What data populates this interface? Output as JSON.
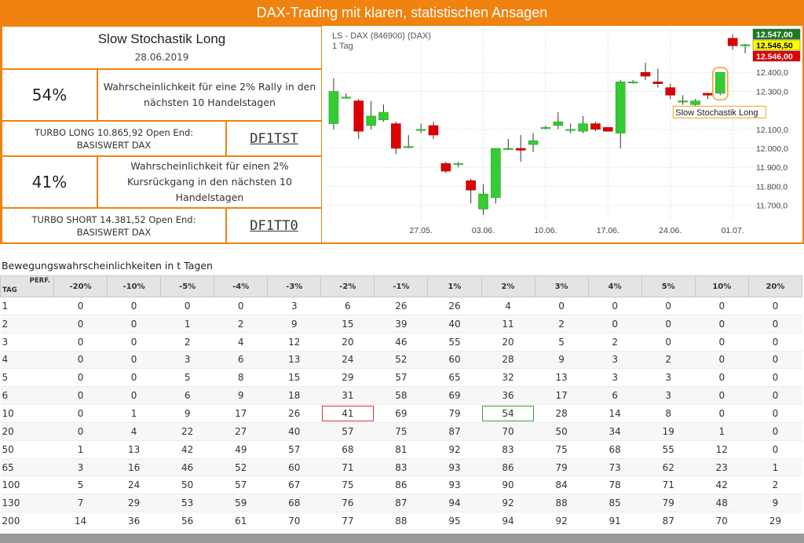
{
  "banner": {
    "title": "DAX-Trading mit klaren, statistischen Ansagen"
  },
  "signal": {
    "title": "Slow Stochastik Long",
    "date": "28.06.2019",
    "rally": {
      "pct": "54%",
      "text": "Wahrscheinlichkeit für eine 2% Rally in den nächsten 10 Handelstagen"
    },
    "long": {
      "turbo": "TURBO LONG 10.865,92 Open End: BASISWERT DAX",
      "code": "DF1TST"
    },
    "fall": {
      "pct": "41%",
      "text": "Wahrscheinlichkeit für einen 2% Kursrückgang in den nächsten 10 Handelstagen"
    },
    "short": {
      "turbo": "TURBO SHORT 14.381,52 Open End: BASISWERT DAX",
      "code": "DF1TT0"
    }
  },
  "chart_data": {
    "type": "candlestick",
    "title": "LS - DAX (846900) (DAX)",
    "subtitle": "1 Tag",
    "annotation": "Slow Stochastik Long",
    "ylim": [
      11620,
      12620
    ],
    "y_ticks": [
      11700,
      11800,
      11900,
      12000,
      12100,
      12300,
      12400
    ],
    "y_tick_labels": [
      "11.700,0",
      "11.800,0",
      "11.900,0",
      "12.000,0",
      "12.100,0",
      "12.300,0",
      "12.400,0"
    ],
    "x_ticks": [
      {
        "label": "27.05.",
        "index": 7
      },
      {
        "label": "03.06.",
        "index": 12
      },
      {
        "label": "10.06.",
        "index": 17
      },
      {
        "label": "17.06.",
        "index": 22
      },
      {
        "label": "24.06.",
        "index": 27
      },
      {
        "label": "01.07.",
        "index": 32
      }
    ],
    "price_labels": [
      {
        "value": "12.547,00",
        "color": "#1f7a1f",
        "text_color": "#ffffff"
      },
      {
        "value": "12.546,50",
        "color": "#ffff00",
        "text_color": "#000000"
      },
      {
        "value": "12.546,00",
        "color": "#e00000",
        "text_color": "#ffffff"
      }
    ],
    "colors": {
      "up": "#33cc33",
      "down": "#dd0000"
    },
    "candles": [
      {
        "o": 12130,
        "h": 12370,
        "l": 12100,
        "c": 12300
      },
      {
        "o": 12270,
        "h": 12290,
        "l": 12260,
        "c": 12270
      },
      {
        "o": 12250,
        "h": 12260,
        "l": 12050,
        "c": 12090
      },
      {
        "o": 12120,
        "h": 12250,
        "l": 12100,
        "c": 12170
      },
      {
        "o": 12150,
        "h": 12230,
        "l": 12140,
        "c": 12190
      },
      {
        "o": 12130,
        "h": 12140,
        "l": 11970,
        "c": 12000
      },
      {
        "o": 12010,
        "h": 12070,
        "l": 12000,
        "c": 12010
      },
      {
        "o": 12100,
        "h": 12130,
        "l": 12080,
        "c": 12100
      },
      {
        "o": 12120,
        "h": 12140,
        "l": 12050,
        "c": 12070
      },
      {
        "o": 11920,
        "h": 11930,
        "l": 11870,
        "c": 11880
      },
      {
        "o": 11920,
        "h": 11930,
        "l": 11900,
        "c": 11920
      },
      {
        "o": 11830,
        "h": 11840,
        "l": 11710,
        "c": 11780
      },
      {
        "o": 11680,
        "h": 11810,
        "l": 11650,
        "c": 11760
      },
      {
        "o": 11740,
        "h": 12000,
        "l": 11710,
        "c": 12000
      },
      {
        "o": 12000,
        "h": 12050,
        "l": 11990,
        "c": 12000
      },
      {
        "o": 12000,
        "h": 12070,
        "l": 11930,
        "c": 11990
      },
      {
        "o": 12020,
        "h": 12080,
        "l": 11980,
        "c": 12040
      },
      {
        "o": 12110,
        "h": 12120,
        "l": 12100,
        "c": 12110
      },
      {
        "o": 12120,
        "h": 12190,
        "l": 12100,
        "c": 12140
      },
      {
        "o": 12100,
        "h": 12130,
        "l": 12080,
        "c": 12100
      },
      {
        "o": 12090,
        "h": 12170,
        "l": 12080,
        "c": 12130
      },
      {
        "o": 12130,
        "h": 12140,
        "l": 12090,
        "c": 12100
      },
      {
        "o": 12110,
        "h": 12110,
        "l": 12090,
        "c": 12090
      },
      {
        "o": 12080,
        "h": 12360,
        "l": 12000,
        "c": 12350
      },
      {
        "o": 12350,
        "h": 12360,
        "l": 12340,
        "c": 12350
      },
      {
        "o": 12400,
        "h": 12450,
        "l": 12360,
        "c": 12380
      },
      {
        "o": 12350,
        "h": 12420,
        "l": 12320,
        "c": 12340
      },
      {
        "o": 12320,
        "h": 12340,
        "l": 12260,
        "c": 12280
      },
      {
        "o": 12250,
        "h": 12280,
        "l": 12230,
        "c": 12250
      },
      {
        "o": 12230,
        "h": 12260,
        "l": 12210,
        "c": 12250
      },
      {
        "o": 12290,
        "h": 12290,
        "l": 12260,
        "c": 12280
      },
      {
        "o": 12290,
        "h": 12400,
        "l": 12280,
        "c": 12400
      },
      {
        "o": 12580,
        "h": 12600,
        "l": 12520,
        "c": 12540
      },
      {
        "o": 12546,
        "h": 12550,
        "l": 12500,
        "c": 12546
      }
    ]
  },
  "table": {
    "caption": "Bewegungswahrscheinlichkeiten in t Tagen",
    "corner_top": "PERF.",
    "corner_bottom": "TAG",
    "columns": [
      "-20%",
      "-10%",
      "-5%",
      "-4%",
      "-3%",
      "-2%",
      "-1%",
      "1%",
      "2%",
      "3%",
      "4%",
      "5%",
      "10%",
      "20%"
    ],
    "rows": [
      {
        "day": "1",
        "values": [
          "0",
          "0",
          "0",
          "0",
          "3",
          "6",
          "26",
          "26",
          "4",
          "0",
          "0",
          "0",
          "0",
          "0"
        ]
      },
      {
        "day": "2",
        "values": [
          "0",
          "0",
          "1",
          "2",
          "9",
          "15",
          "39",
          "40",
          "11",
          "2",
          "0",
          "0",
          "0",
          "0"
        ]
      },
      {
        "day": "3",
        "values": [
          "0",
          "0",
          "2",
          "4",
          "12",
          "20",
          "46",
          "55",
          "20",
          "5",
          "2",
          "0",
          "0",
          "0"
        ]
      },
      {
        "day": "4",
        "values": [
          "0",
          "0",
          "3",
          "6",
          "13",
          "24",
          "52",
          "60",
          "28",
          "9",
          "3",
          "2",
          "0",
          "0"
        ]
      },
      {
        "day": "5",
        "values": [
          "0",
          "0",
          "5",
          "8",
          "15",
          "29",
          "57",
          "65",
          "32",
          "13",
          "3",
          "3",
          "0",
          "0"
        ]
      },
      {
        "day": "6",
        "values": [
          "0",
          "0",
          "6",
          "9",
          "18",
          "31",
          "58",
          "69",
          "36",
          "17",
          "6",
          "3",
          "0",
          "0"
        ]
      },
      {
        "day": "10",
        "values": [
          "0",
          "1",
          "9",
          "17",
          "26",
          "41",
          "69",
          "79",
          "54",
          "28",
          "14",
          "8",
          "0",
          "0"
        ]
      },
      {
        "day": "20",
        "values": [
          "0",
          "4",
          "22",
          "27",
          "40",
          "57",
          "75",
          "87",
          "70",
          "50",
          "34",
          "19",
          "1",
          "0"
        ]
      },
      {
        "day": "50",
        "values": [
          "1",
          "13",
          "42",
          "49",
          "57",
          "68",
          "81",
          "92",
          "83",
          "75",
          "68",
          "55",
          "12",
          "0"
        ]
      },
      {
        "day": "65",
        "values": [
          "3",
          "16",
          "46",
          "52",
          "60",
          "71",
          "83",
          "93",
          "86",
          "79",
          "73",
          "62",
          "23",
          "1"
        ]
      },
      {
        "day": "100",
        "values": [
          "5",
          "24",
          "50",
          "57",
          "67",
          "75",
          "86",
          "93",
          "90",
          "84",
          "78",
          "71",
          "42",
          "2"
        ]
      },
      {
        "day": "130",
        "values": [
          "7",
          "29",
          "53",
          "59",
          "68",
          "76",
          "87",
          "94",
          "92",
          "88",
          "85",
          "79",
          "48",
          "9"
        ]
      },
      {
        "day": "200",
        "values": [
          "14",
          "36",
          "56",
          "61",
          "70",
          "77",
          "88",
          "95",
          "94",
          "92",
          "91",
          "87",
          "70",
          "29"
        ]
      }
    ],
    "highlight": [
      {
        "row": 6,
        "col": 5,
        "color": "red"
      },
      {
        "row": 6,
        "col": 8,
        "color": "green"
      }
    ]
  }
}
